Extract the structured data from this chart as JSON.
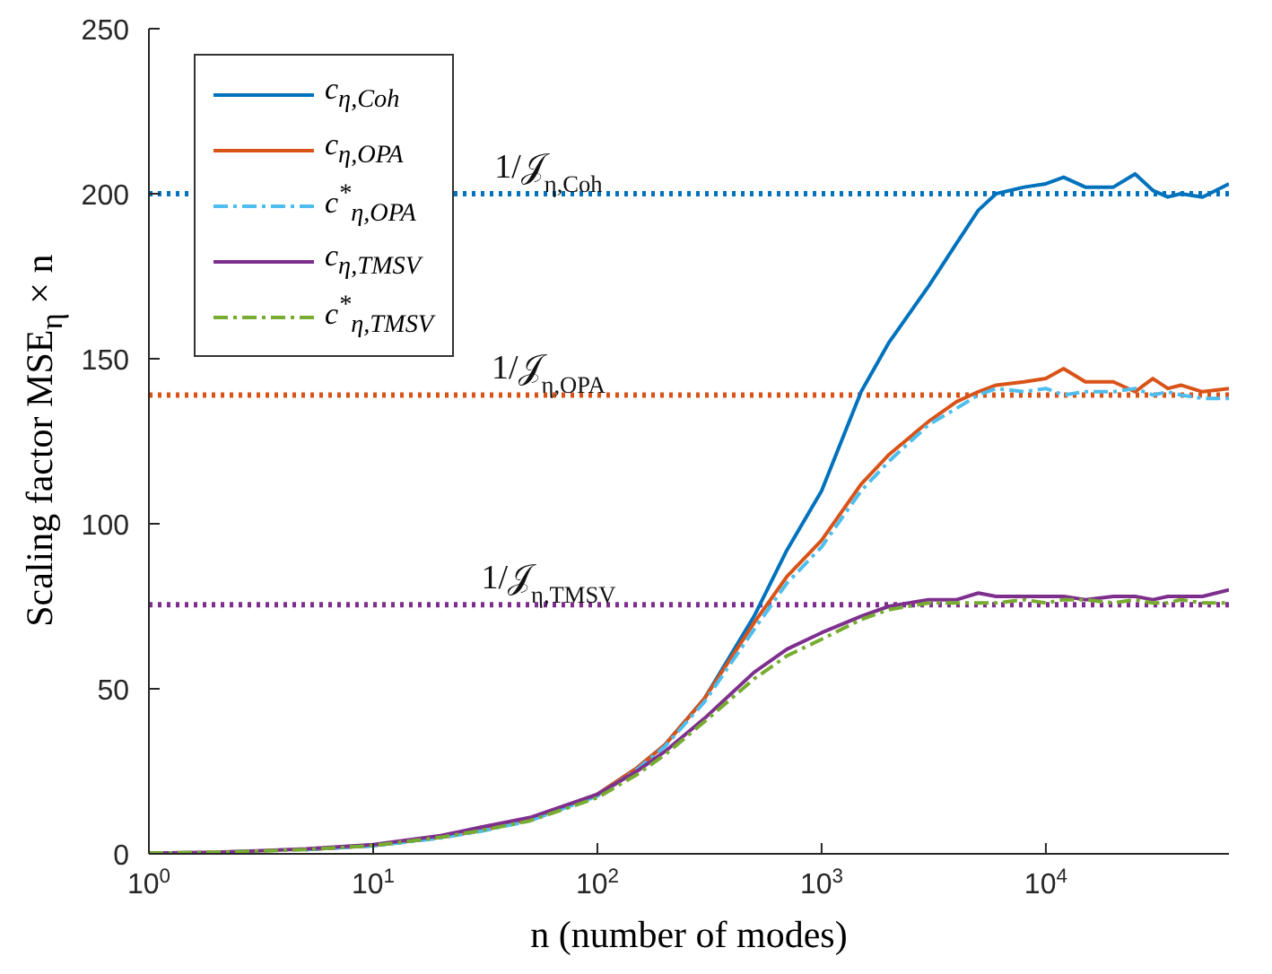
{
  "chart_data": {
    "type": "line",
    "xlabel": "n (number of modes)",
    "ylabel": "Scaling factor MSE$_{η}$ × n",
    "x": [
      1,
      2,
      3,
      5,
      10,
      20,
      30,
      50,
      100,
      150,
      200,
      300,
      500,
      700,
      1000,
      1500,
      2000,
      3000,
      4000,
      5000,
      6000,
      8000,
      10000,
      12000,
      15000,
      20000,
      25000,
      30000,
      35000,
      40000,
      50000,
      65536
    ],
    "series": [
      {
        "name": "c$_{η,Coh}$",
        "color": "#0072bd",
        "line_style": "solid",
        "x": [
          5,
          10,
          20,
          30,
          50,
          100,
          150,
          200,
          300,
          500,
          700,
          1000,
          1500,
          2000,
          3000,
          4000,
          5000,
          6000,
          8000,
          10000,
          12000,
          15000,
          20000,
          25000,
          30000,
          35000,
          40000,
          50000,
          65536
        ],
        "values": [
          1.3,
          2.5,
          5,
          7,
          10.5,
          18,
          26,
          33,
          47,
          72,
          92,
          110,
          140,
          155,
          172,
          185,
          195,
          200,
          202,
          203,
          205,
          202,
          202,
          206,
          201,
          199,
          200,
          199,
          203
        ]
      },
      {
        "name": "c$_{η,OPA}$",
        "color": "#d95319",
        "line_style": "solid",
        "x": [
          5,
          10,
          20,
          30,
          50,
          100,
          150,
          200,
          300,
          500,
          700,
          1000,
          1500,
          2000,
          3000,
          4000,
          5000,
          6000,
          8000,
          10000,
          12000,
          15000,
          20000,
          25000,
          30000,
          35000,
          40000,
          50000,
          65536
        ],
        "values": [
          1.3,
          2.5,
          5,
          7,
          10.5,
          18,
          26,
          33,
          47,
          70,
          84,
          95,
          112,
          121,
          131,
          137,
          140,
          142,
          143,
          144,
          147,
          143,
          143,
          140,
          144,
          141,
          142,
          140,
          141
        ]
      },
      {
        "name": "c$^{*}$$_{η,OPA}$",
        "color": "#4dbeee",
        "line_style": "dashed",
        "x": [
          5,
          10,
          20,
          30,
          50,
          100,
          150,
          200,
          300,
          500,
          700,
          1000,
          1500,
          2000,
          3000,
          4000,
          5000,
          6000,
          8000,
          10000,
          12000,
          15000,
          20000,
          25000,
          30000,
          35000,
          40000,
          50000,
          65536
        ],
        "values": [
          1.3,
          2.4,
          4.8,
          6.8,
          10,
          17.5,
          25.5,
          32.5,
          46,
          68,
          82,
          93,
          110,
          119,
          130,
          135,
          139,
          141,
          140,
          141,
          139,
          140,
          140,
          141,
          139,
          140,
          139,
          138,
          138
        ]
      },
      {
        "name": "c$_{η,TMSV}$",
        "color": "#7e2f8e",
        "line_style": "solid",
        "values": [
          0.2,
          0.5,
          0.9,
          1.5,
          2.8,
          5.5,
          8,
          11,
          18,
          25,
          31,
          41,
          55,
          62,
          67,
          72,
          75,
          77,
          77,
          79,
          78,
          78,
          78,
          78,
          77,
          78,
          78,
          77,
          78,
          78,
          78,
          80
        ]
      },
      {
        "name": "c$^{*}$$_{η,TMSV}$",
        "color": "#77ac30",
        "line_style": "dashed",
        "values": [
          0.2,
          0.5,
          0.8,
          1.3,
          2.5,
          5,
          7,
          10,
          17,
          24,
          30,
          40,
          53,
          60,
          65,
          71,
          74,
          76,
          76,
          76,
          76,
          77,
          76,
          77,
          77,
          76,
          77,
          76,
          76,
          77,
          76,
          76
        ]
      }
    ],
    "ref_lines": [
      {
        "axis": "y",
        "value": 200,
        "label": "1/𝒥$_{η,Coh}$",
        "color": "#0072bd",
        "line_style": "dotted"
      },
      {
        "axis": "y",
        "value": 139,
        "label": "1/𝒥$_{η,OPA}$",
        "color": "#d95319",
        "line_style": "dotted"
      },
      {
        "axis": "y",
        "value": 75.5,
        "label": "1/𝒥$_{η,TMSV}$",
        "color": "#7e2f8e",
        "line_style": "dotted"
      }
    ],
    "log": "x",
    "xlim": [
      1,
      65536
    ],
    "xticks": [
      {
        "value": 1,
        "label": "10$^{0}$"
      },
      {
        "value": 10,
        "label": "10$^{1}$"
      },
      {
        "value": 100,
        "label": "10$^{2}$"
      },
      {
        "value": 1000,
        "label": "10$^{3}$"
      },
      {
        "value": 10000,
        "label": "10$^{4}$"
      }
    ],
    "ylim": [
      0,
      250
    ],
    "yticks": [
      0,
      50,
      100,
      150,
      200,
      250
    ],
    "grid": false,
    "legend": "top left",
    "marker": "none"
  }
}
